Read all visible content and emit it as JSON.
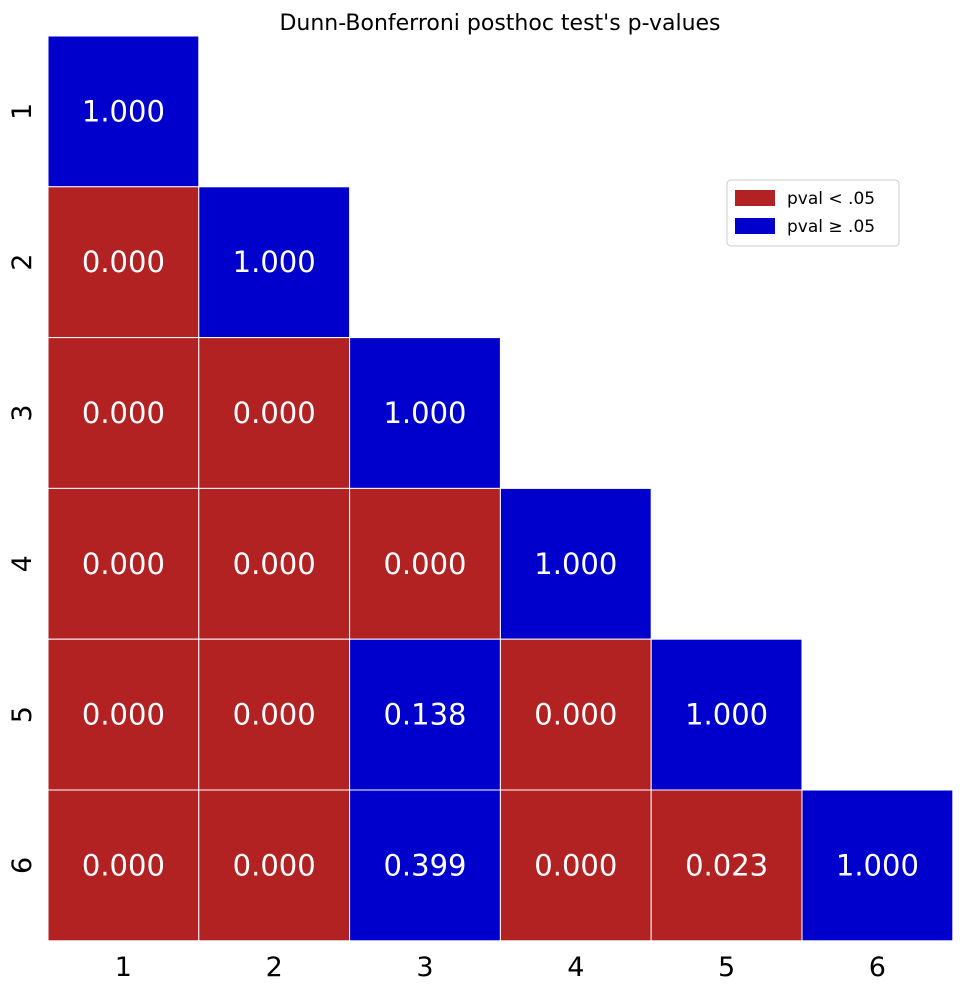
{
  "chart_data": {
    "type": "heatmap",
    "title": "Dunn-Bonferroni posthoc test's p-values",
    "xlabel": "",
    "ylabel": "",
    "x_categories": [
      "1",
      "2",
      "3",
      "4",
      "5",
      "6"
    ],
    "y_categories": [
      "1",
      "2",
      "3",
      "4",
      "5",
      "6"
    ],
    "matrix": [
      [
        "1.000",
        null,
        null,
        null,
        null,
        null
      ],
      [
        "0.000",
        "1.000",
        null,
        null,
        null,
        null
      ],
      [
        "0.000",
        "0.000",
        "1.000",
        null,
        null,
        null
      ],
      [
        "0.000",
        "0.000",
        "0.000",
        "1.000",
        null,
        null
      ],
      [
        "0.000",
        "0.000",
        "0.138",
        "0.000",
        "1.000",
        null
      ],
      [
        "0.000",
        "0.000",
        "0.399",
        "0.000",
        "0.023",
        "1.000"
      ]
    ],
    "mask": "upper-triangle",
    "threshold": 0.05,
    "colors": {
      "significant": "#b22222",
      "not_significant": "#0000cd",
      "cell_text": "#ffffff"
    },
    "legend": {
      "position": "upper-right",
      "entries": [
        {
          "label": "pval < .05",
          "color": "#b22222"
        },
        {
          "label": "pval ≥ .05",
          "color": "#0000cd"
        }
      ]
    },
    "grid": false
  }
}
